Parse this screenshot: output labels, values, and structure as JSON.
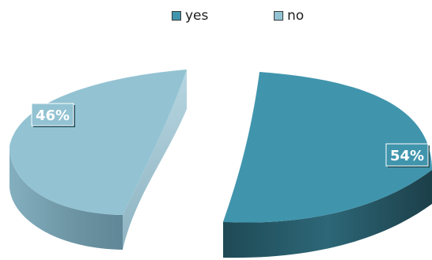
{
  "chart_data": {
    "type": "pie",
    "title": "",
    "categories": [
      "yes",
      "no"
    ],
    "values": [
      54,
      46
    ],
    "data_labels": [
      "54%",
      "46%"
    ],
    "legend": {
      "placement": "top",
      "entries": [
        "yes",
        "no"
      ]
    },
    "three_d": true,
    "exploded": true,
    "colors": {
      "yes_top": "#4095ad",
      "yes_side": "#23525f",
      "no_top": "#93c3d3",
      "no_side": "#6c94a4",
      "label_box": "#1f4d59"
    }
  }
}
